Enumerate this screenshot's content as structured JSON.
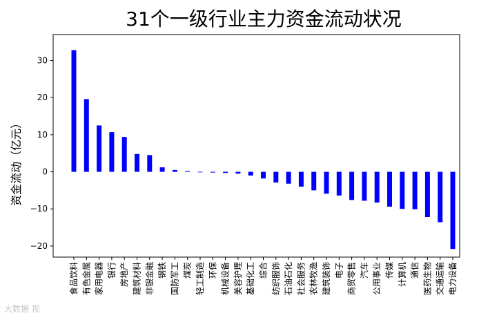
{
  "watermark": "大数据 视",
  "chart_data": {
    "type": "bar",
    "title": "31个一级行业主力资金流动状况",
    "xlabel": "",
    "ylabel": "资金流动（亿元）",
    "ylim": [
      -23,
      37
    ],
    "yticks": [
      30,
      20,
      10,
      0,
      -10,
      -20
    ],
    "ytick_labels": [
      "30",
      "20",
      "10",
      "0",
      "−10",
      "−20"
    ],
    "bar_color": "#0000ff",
    "grid": false,
    "categories": [
      "食品饮料",
      "有色金属",
      "家用电器",
      "银行",
      "房地产",
      "建筑材料",
      "非银金融",
      "钢铁",
      "国防军工",
      "煤炭",
      "轻工制造",
      "环保",
      "机械设备",
      "美容护理",
      "基础化工",
      "综合",
      "纺织服饰",
      "石油石化",
      "社会服务",
      "农林牧渔",
      "建筑装饰",
      "电子",
      "商贸零售",
      "汽车",
      "公用事业",
      "传媒",
      "计算机",
      "通信",
      "医药生物",
      "交通运输",
      "电力设备"
    ],
    "values": [
      32.8,
      19.6,
      12.5,
      10.7,
      9.4,
      4.8,
      4.5,
      1.2,
      0.5,
      0.2,
      -0.1,
      -0.2,
      -0.3,
      -0.5,
      -1.0,
      -1.8,
      -2.9,
      -3.2,
      -4.0,
      -5.0,
      -5.9,
      -6.4,
      -7.6,
      -7.8,
      -8.3,
      -9.4,
      -10.0,
      -10.1,
      -12.2,
      -13.6,
      -20.8
    ]
  }
}
